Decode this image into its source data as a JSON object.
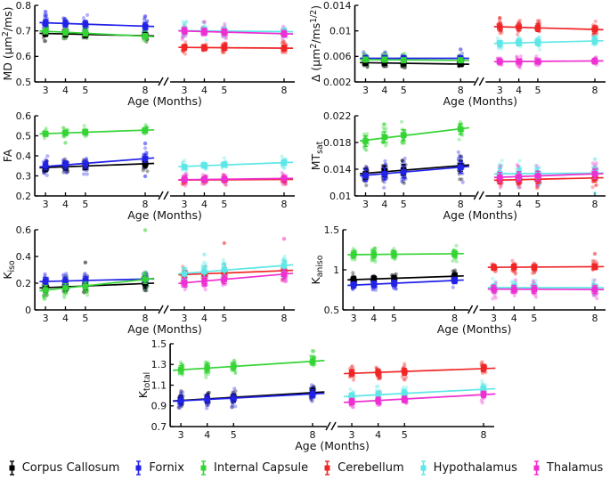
{
  "figure": {
    "background": "#ffffff",
    "xlabel": "Age (Months)",
    "ages": [
      3,
      4,
      5,
      8
    ],
    "series_colors": {
      "corpus_callosum": "#000000",
      "fornix": "#2121e8",
      "internal_capsule": "#35d435",
      "cerebellum": "#f02525",
      "hypothalamus": "#5fe7e7",
      "thalamus": "#ee2fd2"
    },
    "legend": [
      {
        "key": "corpus_callosum",
        "label": "Corpus Callosum"
      },
      {
        "key": "fornix",
        "label": "Fornix"
      },
      {
        "key": "internal_capsule",
        "label": "Internal Capsule"
      },
      {
        "key": "cerebellum",
        "label": "Cerebellum"
      },
      {
        "key": "hypothalamus",
        "label": "Hypothalamus"
      },
      {
        "key": "thalamus",
        "label": "Thalamus"
      }
    ]
  },
  "chart_data": [
    {
      "id": "md",
      "type": "scatter",
      "ylabel_parts": [
        [
          "n",
          "MD ("
        ],
        [
          "n",
          "μm"
        ],
        [
          "sup",
          "2"
        ],
        [
          "n",
          "/ms)"
        ]
      ],
      "xlabel": "Age (Months)",
      "ylim": [
        0.5,
        0.8
      ],
      "yticks": [
        0.5,
        0.6,
        0.7,
        0.8
      ],
      "ytick_labels": [
        "0.5",
        "0.6",
        "0.7",
        "0.8"
      ],
      "x": [
        3,
        4,
        5,
        8
      ],
      "panels": [
        {
          "series": [
            {
              "key": "corpus_callosum",
              "means": [
                0.69,
                0.688,
                0.686,
                0.681
              ],
              "sigma": 0.012
            },
            {
              "key": "fornix",
              "means": [
                0.731,
                0.729,
                0.727,
                0.718
              ],
              "sigma": 0.014
            },
            {
              "key": "internal_capsule",
              "means": [
                0.699,
                0.694,
                0.691,
                0.679
              ],
              "sigma": 0.011
            }
          ]
        },
        {
          "series": [
            {
              "key": "cerebellum",
              "means": [
                0.635,
                0.634,
                0.635,
                0.632
              ],
              "sigma": 0.012
            },
            {
              "key": "hypothalamus",
              "means": [
                0.701,
                0.7,
                0.699,
                0.697
              ],
              "sigma": 0.014
            },
            {
              "key": "thalamus",
              "means": [
                0.7,
                0.697,
                0.695,
                0.689
              ],
              "sigma": 0.013
            }
          ]
        }
      ],
      "outliers": [
        {
          "key": "fornix",
          "panel": 0,
          "x": 3,
          "y": 0.775
        },
        {
          "key": "fornix",
          "panel": 0,
          "x": 8,
          "y": 0.757
        },
        {
          "key": "thalamus",
          "panel": 1,
          "x": 4,
          "y": 0.735
        },
        {
          "key": "hypothalamus",
          "panel": 1,
          "x": 3,
          "y": 0.728
        }
      ]
    },
    {
      "id": "delta",
      "type": "scatter",
      "ylabel_parts": [
        [
          "n",
          "Δ ("
        ],
        [
          "n",
          "μm"
        ],
        [
          "sup",
          "2"
        ],
        [
          "n",
          "/ms"
        ],
        [
          "sup",
          "1/2"
        ],
        [
          "n",
          ")"
        ]
      ],
      "xlabel": "Age (Months)",
      "ylim": [
        0.002,
        0.014
      ],
      "yticks": [
        0.002,
        0.006,
        0.01,
        0.014
      ],
      "ytick_labels": [
        "0.002",
        "0.006",
        "0.01",
        "0.014"
      ],
      "x": [
        3,
        4,
        5,
        8
      ],
      "panels": [
        {
          "series": [
            {
              "key": "corpus_callosum",
              "means": [
                0.005,
                0.005,
                0.0049,
                0.0048
              ],
              "sigma": 0.0004
            },
            {
              "key": "fornix",
              "means": [
                0.0057,
                0.0057,
                0.0057,
                0.0057
              ],
              "sigma": 0.0004
            },
            {
              "key": "internal_capsule",
              "means": [
                0.0055,
                0.0055,
                0.0054,
                0.0054
              ],
              "sigma": 0.0004
            }
          ]
        },
        {
          "series": [
            {
              "key": "cerebellum",
              "means": [
                0.0106,
                0.0106,
                0.0105,
                0.0102
              ],
              "sigma": 0.0006
            },
            {
              "key": "hypothalamus",
              "means": [
                0.008,
                0.0082,
                0.0082,
                0.0084
              ],
              "sigma": 0.0005
            },
            {
              "key": "thalamus",
              "means": [
                0.0052,
                0.0052,
                0.0052,
                0.0053
              ],
              "sigma": 0.0004
            }
          ]
        }
      ],
      "outliers": [
        {
          "key": "fornix",
          "panel": 0,
          "x": 8,
          "y": 0.0071
        },
        {
          "key": "cerebellum",
          "panel": 1,
          "x": 3,
          "y": 0.012
        }
      ]
    },
    {
      "id": "fa",
      "type": "scatter",
      "ylabel_parts": [
        [
          "n",
          "FA"
        ]
      ],
      "xlabel": "Age (Months)",
      "ylim": [
        0.2,
        0.6
      ],
      "yticks": [
        0.2,
        0.3,
        0.4,
        0.5,
        0.6
      ],
      "ytick_labels": [
        "0.2",
        "0.3",
        "0.4",
        "0.5",
        "0.6"
      ],
      "x": [
        3,
        4,
        5,
        8
      ],
      "panels": [
        {
          "series": [
            {
              "key": "corpus_callosum",
              "means": [
                0.34,
                0.347,
                0.35,
                0.36
              ],
              "sigma": 0.018
            },
            {
              "key": "fornix",
              "means": [
                0.35,
                0.354,
                0.358,
                0.388
              ],
              "sigma": 0.02
            },
            {
              "key": "internal_capsule",
              "means": [
                0.51,
                0.515,
                0.518,
                0.528
              ],
              "sigma": 0.013
            }
          ]
        },
        {
          "series": [
            {
              "key": "cerebellum",
              "means": [
                0.279,
                0.28,
                0.281,
                0.282
              ],
              "sigma": 0.011
            },
            {
              "key": "hypothalamus",
              "means": [
                0.345,
                0.352,
                0.357,
                0.365
              ],
              "sigma": 0.013
            },
            {
              "key": "thalamus",
              "means": [
                0.281,
                0.282,
                0.284,
                0.287
              ],
              "sigma": 0.012
            }
          ]
        }
      ],
      "outliers": [
        {
          "key": "fornix",
          "panel": 0,
          "x": 8,
          "y": 0.462
        },
        {
          "key": "fornix",
          "panel": 0,
          "x": 8,
          "y": 0.298
        },
        {
          "key": "internal_capsule",
          "panel": 0,
          "x": 4,
          "y": 0.465
        }
      ]
    },
    {
      "id": "mtsat",
      "type": "scatter",
      "ylabel_parts": [
        [
          "n",
          "MT"
        ],
        [
          "sub",
          "sat"
        ]
      ],
      "xlabel": "Age (Months)",
      "ylim": [
        0.01,
        0.022
      ],
      "yticks": [
        0.01,
        0.014,
        0.018,
        0.022
      ],
      "ytick_labels": [
        "0.01",
        "0.014",
        "0.018",
        "0.022"
      ],
      "x": [
        3,
        4,
        5,
        8
      ],
      "panels": [
        {
          "series": [
            {
              "key": "corpus_callosum",
              "means": [
                0.0133,
                0.0137,
                0.0139,
                0.0145
              ],
              "sigma": 0.0008
            },
            {
              "key": "fornix",
              "means": [
                0.0131,
                0.0133,
                0.0136,
                0.0143
              ],
              "sigma": 0.0009
            },
            {
              "key": "internal_capsule",
              "means": [
                0.0182,
                0.0188,
                0.0191,
                0.02
              ],
              "sigma": 0.0008
            }
          ]
        },
        {
          "series": [
            {
              "key": "cerebellum",
              "means": [
                0.0124,
                0.0124,
                0.0125,
                0.0127
              ],
              "sigma": 0.0006
            },
            {
              "key": "hypothalamus",
              "means": [
                0.0133,
                0.0133,
                0.0134,
                0.0134
              ],
              "sigma": 0.0008
            },
            {
              "key": "thalamus",
              "means": [
                0.0128,
                0.0129,
                0.013,
                0.0133
              ],
              "sigma": 0.0007
            }
          ]
        }
      ],
      "outliers": [
        {
          "key": "hypothalamus",
          "panel": 1,
          "x": 8,
          "y": 0.0155
        },
        {
          "key": "hypothalamus",
          "panel": 1,
          "x": 8,
          "y": 0.0104
        }
      ]
    },
    {
      "id": "kiso",
      "type": "scatter",
      "ylabel_parts": [
        [
          "n",
          "K"
        ],
        [
          "sub",
          "iso"
        ]
      ],
      "xlabel": "Age (Months)",
      "ylim": [
        0,
        0.6
      ],
      "yticks": [
        0,
        0.2,
        0.4,
        0.6
      ],
      "ytick_labels": [
        "0",
        "0.2",
        "0.4",
        "0.6"
      ],
      "x": [
        3,
        4,
        5,
        8
      ],
      "panels": [
        {
          "series": [
            {
              "key": "corpus_callosum",
              "means": [
                0.165,
                0.174,
                0.18,
                0.197
              ],
              "sigma": 0.032
            },
            {
              "key": "fornix",
              "means": [
                0.214,
                0.216,
                0.22,
                0.231
              ],
              "sigma": 0.028
            },
            {
              "key": "internal_capsule",
              "means": [
                0.15,
                0.164,
                0.176,
                0.23
              ],
              "sigma": 0.032
            }
          ]
        },
        {
          "series": [
            {
              "key": "cerebellum",
              "means": [
                0.263,
                0.266,
                0.285,
                0.291
              ],
              "sigma": 0.028
            },
            {
              "key": "hypothalamus",
              "means": [
                0.27,
                0.286,
                0.302,
                0.33
              ],
              "sigma": 0.042
            },
            {
              "key": "thalamus",
              "means": [
                0.204,
                0.214,
                0.229,
                0.268
              ],
              "sigma": 0.033
            }
          ]
        }
      ],
      "outliers": [
        {
          "key": "internal_capsule",
          "panel": 0,
          "x": 8,
          "y": 0.597
        },
        {
          "key": "corpus_callosum",
          "panel": 0,
          "x": 5,
          "y": 0.355
        },
        {
          "key": "cerebellum",
          "panel": 1,
          "x": 5,
          "y": 0.5
        },
        {
          "key": "thalamus",
          "panel": 1,
          "x": 8,
          "y": 0.532
        },
        {
          "key": "hypothalamus",
          "panel": 1,
          "x": 4,
          "y": 0.415
        }
      ]
    },
    {
      "id": "kaniso",
      "type": "scatter",
      "ylabel_parts": [
        [
          "n",
          "K"
        ],
        [
          "sub",
          "aniso"
        ]
      ],
      "xlabel": "Age (Months)",
      "ylim": [
        0.5,
        1.5
      ],
      "yticks": [
        0.5,
        1,
        1.5
      ],
      "ytick_labels": [
        "0.5",
        "1",
        "1.5"
      ],
      "x": [
        3,
        4,
        5,
        8
      ],
      "panels": [
        {
          "series": [
            {
              "key": "corpus_callosum",
              "means": [
                0.88,
                0.887,
                0.89,
                0.922
              ],
              "sigma": 0.038
            },
            {
              "key": "fornix",
              "means": [
                0.81,
                0.82,
                0.832,
                0.868
              ],
              "sigma": 0.04
            },
            {
              "key": "internal_capsule",
              "means": [
                1.188,
                1.192,
                1.196,
                1.2
              ],
              "sigma": 0.045
            }
          ]
        },
        {
          "series": [
            {
              "key": "cerebellum",
              "means": [
                1.032,
                1.036,
                1.03,
                1.04
              ],
              "sigma": 0.035
            },
            {
              "key": "hypothalamus",
              "means": [
                0.78,
                0.778,
                0.776,
                0.778
              ],
              "sigma": 0.045
            },
            {
              "key": "thalamus",
              "means": [
                0.76,
                0.758,
                0.757,
                0.755
              ],
              "sigma": 0.048
            }
          ]
        }
      ],
      "outliers": [
        {
          "key": "cerebellum",
          "panel": 1,
          "x": 8,
          "y": 1.2
        }
      ]
    },
    {
      "id": "ktotal",
      "type": "scatter",
      "ylabel_parts": [
        [
          "n",
          "K"
        ],
        [
          "sub",
          "total"
        ]
      ],
      "xlabel": "Age (Months)",
      "ylim": [
        0.7,
        1.5
      ],
      "yticks": [
        0.7,
        0.9,
        1.1,
        1.3,
        1.5
      ],
      "ytick_labels": [
        "0.7",
        "0.9",
        "1.1",
        "1.3",
        "1.5"
      ],
      "x": [
        3,
        4,
        5,
        8
      ],
      "panels": [
        {
          "series": [
            {
              "key": "corpus_callosum",
              "means": [
                0.955,
                0.968,
                0.978,
                1.03
              ],
              "sigma": 0.038
            },
            {
              "key": "fornix",
              "means": [
                0.95,
                0.962,
                0.972,
                1.016
              ],
              "sigma": 0.038
            },
            {
              "key": "internal_capsule",
              "means": [
                1.25,
                1.266,
                1.276,
                1.332
              ],
              "sigma": 0.038
            }
          ]
        },
        {
          "series": [
            {
              "key": "cerebellum",
              "means": [
                1.218,
                1.222,
                1.228,
                1.262
              ],
              "sigma": 0.034
            },
            {
              "key": "hypothalamus",
              "means": [
                0.992,
                1.008,
                1.02,
                1.06
              ],
              "sigma": 0.032
            },
            {
              "key": "thalamus",
              "means": [
                0.94,
                0.952,
                0.962,
                1.01
              ],
              "sigma": 0.032
            }
          ]
        }
      ],
      "outliers": [
        {
          "key": "internal_capsule",
          "panel": 0,
          "x": 8,
          "y": 1.43
        }
      ]
    }
  ]
}
